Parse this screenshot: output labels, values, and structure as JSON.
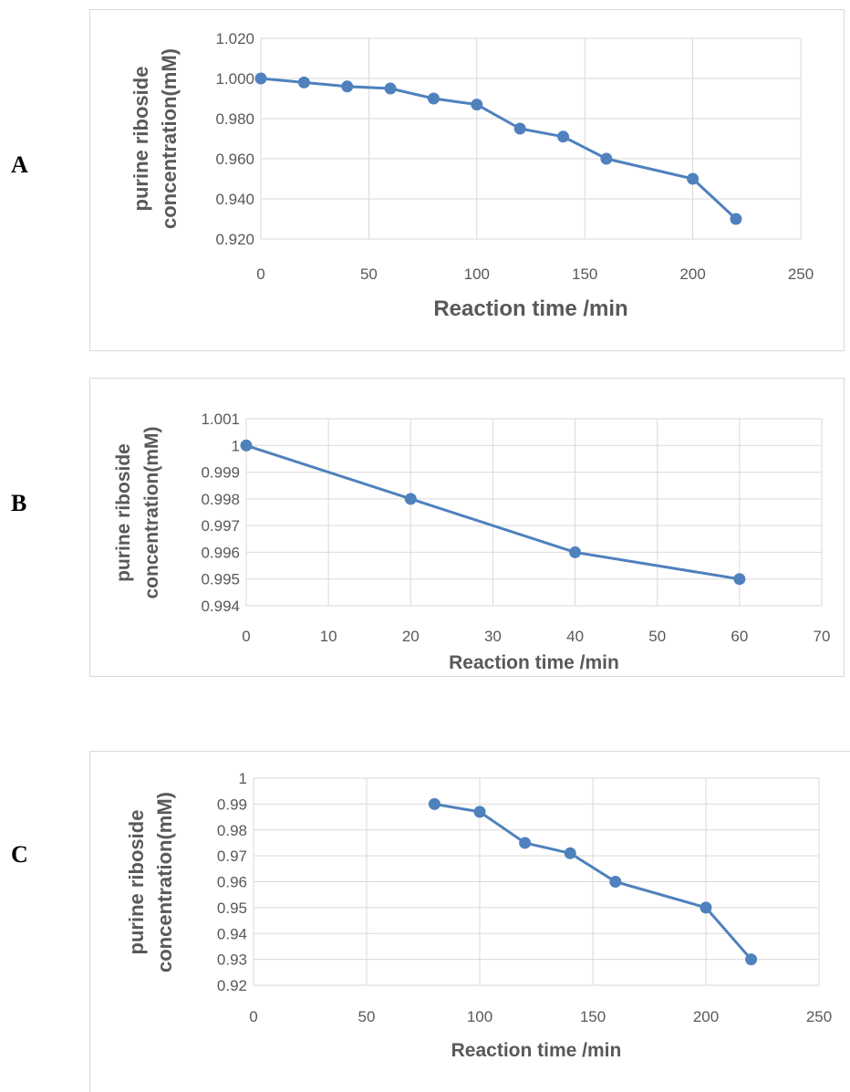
{
  "panels": [
    {
      "letter": "A"
    },
    {
      "letter": "B"
    },
    {
      "letter": "C"
    }
  ],
  "chart_data": [
    {
      "type": "line",
      "ylabel_lines": [
        "purine riboside",
        "concentration(mM)"
      ],
      "xlabel": "Reaction time /min",
      "xlim": [
        0,
        250
      ],
      "ylim": [
        0.92,
        1.02
      ],
      "xticks": [
        "0",
        "50",
        "100",
        "150",
        "200",
        "250"
      ],
      "yticks": [
        "0.920",
        "0.940",
        "0.960",
        "0.980",
        "1.000",
        "1.020"
      ],
      "grid": true,
      "color": "#4f81bd",
      "x": [
        0,
        20,
        40,
        60,
        80,
        100,
        120,
        140,
        160,
        200,
        220
      ],
      "y": [
        1.0,
        0.998,
        0.996,
        0.995,
        0.99,
        0.987,
        0.975,
        0.971,
        0.96,
        0.95,
        0.93
      ]
    },
    {
      "type": "line",
      "ylabel_lines": [
        "purine riboside",
        "concentration(mM)"
      ],
      "xlabel": "Reaction time /min",
      "xlim": [
        0,
        70
      ],
      "ylim": [
        0.994,
        1.001
      ],
      "xticks": [
        "0",
        "10",
        "20",
        "30",
        "40",
        "50",
        "60",
        "70"
      ],
      "yticks": [
        "0.994",
        "0.995",
        "0.996",
        "0.997",
        "0.998",
        "0.999",
        "1",
        "1.001"
      ],
      "grid": true,
      "color": "#4f81bd",
      "x": [
        0,
        20,
        40,
        60
      ],
      "y": [
        1.0,
        0.998,
        0.996,
        0.995
      ]
    },
    {
      "type": "line",
      "ylabel_lines": [
        "purine riboside",
        "concentration(mM)"
      ],
      "xlabel": "Reaction time /min",
      "xlim": [
        0,
        250
      ],
      "ylim": [
        0.92,
        1.0
      ],
      "xticks": [
        "0",
        "50",
        "100",
        "150",
        "200",
        "250"
      ],
      "yticks": [
        "0.92",
        "0.93",
        "0.94",
        "0.95",
        "0.96",
        "0.97",
        "0.98",
        "0.99",
        "1"
      ],
      "grid": true,
      "color": "#4f81bd",
      "x": [
        80,
        100,
        120,
        140,
        160,
        200,
        220
      ],
      "y": [
        0.99,
        0.987,
        0.975,
        0.971,
        0.96,
        0.95,
        0.93
      ]
    }
  ]
}
